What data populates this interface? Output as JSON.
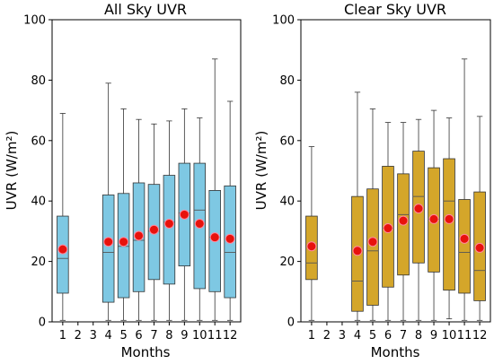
{
  "chart_data": [
    {
      "type": "boxplot",
      "title": "All Sky UVR",
      "xlabel": "Months",
      "ylabel": "UVR (W/m²)",
      "ylim": [
        0,
        100
      ],
      "yticks": [
        0,
        20,
        40,
        60,
        80,
        100
      ],
      "categories": [
        "1",
        "2",
        "3",
        "4",
        "5",
        "6",
        "7",
        "8",
        "9",
        "10",
        "11",
        "12"
      ],
      "box_color": "#7ec8e3",
      "mean_color": "#e8120c",
      "grid": false,
      "boxes": [
        {
          "month": 1,
          "whislo": 0.5,
          "q1": 9.5,
          "med": 21,
          "q3": 35,
          "whishi": 69,
          "mean": 24
        },
        {
          "month": 4,
          "whislo": 0.5,
          "q1": 6.5,
          "med": 23,
          "q3": 42,
          "whishi": 79,
          "mean": 26.5
        },
        {
          "month": 5,
          "whislo": 0.5,
          "q1": 8,
          "med": 25,
          "q3": 42.5,
          "whishi": 70.5,
          "mean": 26.5
        },
        {
          "month": 6,
          "whislo": 0.5,
          "q1": 10,
          "med": 27,
          "q3": 46,
          "whishi": 67,
          "mean": 28.5
        },
        {
          "month": 7,
          "whislo": 0.5,
          "q1": 14,
          "med": 30,
          "q3": 45.5,
          "whishi": 65.5,
          "mean": 30.5
        },
        {
          "month": 8,
          "whislo": 0.5,
          "q1": 12.5,
          "med": 33,
          "q3": 48.5,
          "whishi": 66.5,
          "mean": 32.5
        },
        {
          "month": 9,
          "whislo": 0.5,
          "q1": 18.5,
          "med": 36,
          "q3": 52.5,
          "whishi": 70.5,
          "mean": 35.5
        },
        {
          "month": 10,
          "whislo": 0.5,
          "q1": 11,
          "med": 37,
          "q3": 52.5,
          "whishi": 67.5,
          "mean": 32.5
        },
        {
          "month": 11,
          "whislo": 0.5,
          "q1": 10,
          "med": 28,
          "q3": 43.5,
          "whishi": 87,
          "mean": 28
        },
        {
          "month": 12,
          "whislo": 0.5,
          "q1": 8,
          "med": 23,
          "q3": 45,
          "whishi": 73,
          "mean": 27.5
        }
      ]
    },
    {
      "type": "boxplot",
      "title": "Clear Sky UVR",
      "xlabel": "Months",
      "ylabel": "UVR (W/m²)",
      "ylim": [
        0,
        100
      ],
      "yticks": [
        0,
        20,
        40,
        60,
        80,
        100
      ],
      "categories": [
        "1",
        "2",
        "3",
        "4",
        "5",
        "6",
        "7",
        "8",
        "9",
        "10",
        "11",
        "12"
      ],
      "box_color": "#d4a62a",
      "mean_color": "#e8120c",
      "grid": false,
      "boxes": [
        {
          "month": 1,
          "whislo": 0.5,
          "q1": 14,
          "med": 19.5,
          "q3": 35,
          "whishi": 58,
          "mean": 25
        },
        {
          "month": 4,
          "whislo": 0.5,
          "q1": 3.5,
          "med": 13.5,
          "q3": 41.5,
          "whishi": 76,
          "mean": 23.5
        },
        {
          "month": 5,
          "whislo": 0.5,
          "q1": 5.5,
          "med": 23.5,
          "q3": 44,
          "whishi": 70.5,
          "mean": 26.5
        },
        {
          "month": 6,
          "whislo": 0.5,
          "q1": 11.5,
          "med": 31,
          "q3": 51.5,
          "whishi": 66,
          "mean": 31
        },
        {
          "month": 7,
          "whislo": 0.5,
          "q1": 15.5,
          "med": 35.5,
          "q3": 49,
          "whishi": 66,
          "mean": 33.5
        },
        {
          "month": 8,
          "whislo": 0.5,
          "q1": 19.5,
          "med": 41.5,
          "q3": 56.5,
          "whishi": 67,
          "mean": 37.5
        },
        {
          "month": 9,
          "whislo": 0.5,
          "q1": 16.5,
          "med": 34,
          "q3": 51,
          "whishi": 70,
          "mean": 34
        },
        {
          "month": 10,
          "whislo": 1,
          "q1": 10.5,
          "med": 40,
          "q3": 54,
          "whishi": 67.5,
          "mean": 34
        },
        {
          "month": 11,
          "whislo": 0.5,
          "q1": 9.5,
          "med": 23,
          "q3": 40.5,
          "whishi": 87,
          "mean": 27.5
        },
        {
          "month": 12,
          "whislo": 0.5,
          "q1": 7,
          "med": 17,
          "q3": 43,
          "whishi": 68,
          "mean": 24.5
        }
      ]
    }
  ]
}
